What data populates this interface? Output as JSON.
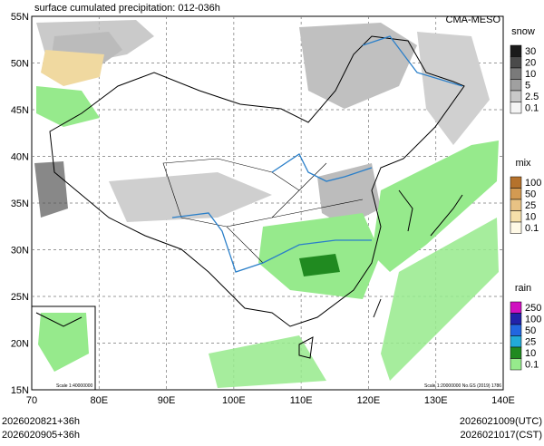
{
  "header": {
    "title": "surface cumulated precipitation: 012-036h",
    "source": "CMA-MESO"
  },
  "axes": {
    "lat_labels": [
      "55N",
      "50N",
      "45N",
      "40N",
      "35N",
      "30N",
      "25N",
      "20N",
      "15N"
    ],
    "lon_labels": [
      "70",
      "80E",
      "90E",
      "100E",
      "110E",
      "120E",
      "130E",
      "140E"
    ]
  },
  "legends": [
    {
      "title": "snow",
      "items": [
        {
          "label": "30",
          "color": "#1a1a1a"
        },
        {
          "label": "20",
          "color": "#4a4a4a"
        },
        {
          "label": "10",
          "color": "#7a7a7a"
        },
        {
          "label": "5",
          "color": "#a0a0a0"
        },
        {
          "label": "2.5",
          "color": "#c8c8c8"
        },
        {
          "label": "0.1",
          "color": "#f4f4f4"
        }
      ]
    },
    {
      "title": "mix",
      "items": [
        {
          "label": "100",
          "color": "#b5722c"
        },
        {
          "label": "50",
          "color": "#d39a52"
        },
        {
          "label": "25",
          "color": "#e8c284"
        },
        {
          "label": "10",
          "color": "#f6e0aa"
        },
        {
          "label": "0.1",
          "color": "#fff9e6"
        }
      ]
    },
    {
      "title": "rain",
      "items": [
        {
          "label": "250",
          "color": "#d010c0"
        },
        {
          "label": "100",
          "color": "#2222aa"
        },
        {
          "label": "50",
          "color": "#2266e0"
        },
        {
          "label": "25",
          "color": "#22aad8"
        },
        {
          "label": "10",
          "color": "#208a20"
        },
        {
          "label": "0.1",
          "color": "#96ea8c"
        }
      ]
    }
  ],
  "inset": {
    "scale": "Scale 1:40000000"
  },
  "scale_note": "Scale 1:20000000 No.GS (2019) 1786",
  "footer": {
    "left": [
      "2026020821+36h",
      "2026020905+36h"
    ],
    "right": [
      "2026021009(UTC)",
      "2026021017(CST)"
    ]
  }
}
